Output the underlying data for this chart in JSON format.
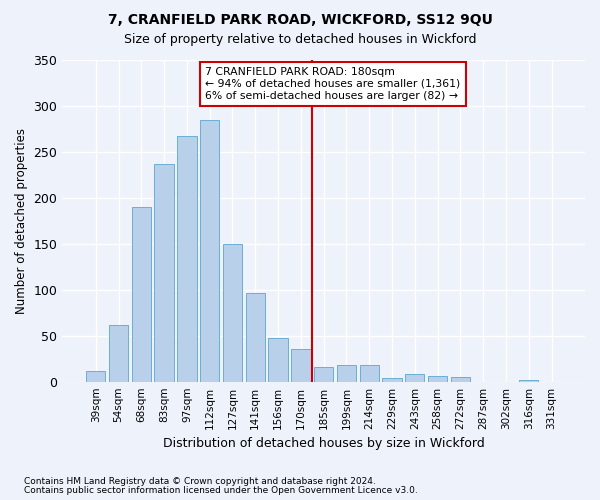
{
  "title": "7, CRANFIELD PARK ROAD, WICKFORD, SS12 9QU",
  "subtitle": "Size of property relative to detached houses in Wickford",
  "xlabel": "Distribution of detached houses by size in Wickford",
  "ylabel": "Number of detached properties",
  "footnote1": "Contains HM Land Registry data © Crown copyright and database right 2024.",
  "footnote2": "Contains public sector information licensed under the Open Government Licence v3.0.",
  "bar_labels": [
    "39sqm",
    "54sqm",
    "68sqm",
    "83sqm",
    "97sqm",
    "112sqm",
    "127sqm",
    "141sqm",
    "156sqm",
    "170sqm",
    "185sqm",
    "199sqm",
    "214sqm",
    "229sqm",
    "243sqm",
    "258sqm",
    "272sqm",
    "287sqm",
    "302sqm",
    "316sqm",
    "331sqm"
  ],
  "bar_heights": [
    12,
    62,
    190,
    237,
    267,
    285,
    150,
    97,
    47,
    36,
    16,
    18,
    18,
    4,
    8,
    6,
    5,
    0,
    0,
    2,
    0
  ],
  "bar_color": "#b8d0ea",
  "bar_edge_color": "#6baed6",
  "vline_color": "#cc0000",
  "annotation_title": "7 CRANFIELD PARK ROAD: 180sqm",
  "annotation_line1": "← 94% of detached houses are smaller (1,361)",
  "annotation_line2": "6% of semi-detached houses are larger (82) →",
  "annotation_box_color": "#cc0000",
  "ylim": [
    0,
    350
  ],
  "yticks": [
    0,
    50,
    100,
    150,
    200,
    250,
    300,
    350
  ],
  "background_color": "#eef2fb",
  "grid_color": "#ffffff"
}
